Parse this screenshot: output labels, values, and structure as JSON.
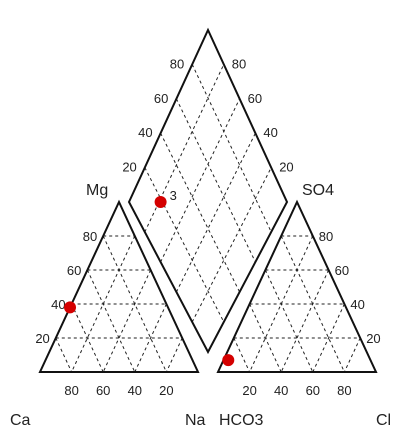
{
  "chart_data": {
    "type": "scatter",
    "variant": "piper-diagram",
    "grid_interval": 20,
    "point_color": "#d40000",
    "cation_triangle": {
      "corner_labels": [
        "Ca",
        "Mg",
        "Na"
      ],
      "left_axis_ticks": [
        "20",
        "40",
        "60",
        "80"
      ],
      "bottom_axis_ticks": [
        "80",
        "60",
        "40",
        "20"
      ],
      "points": [
        {
          "Ca": 62,
          "Mg": 38,
          "Na": 0
        }
      ]
    },
    "anion_triangle": {
      "corner_labels": [
        "HCO3",
        "SO4",
        "Cl"
      ],
      "right_axis_ticks": [
        "20",
        "40",
        "60",
        "80"
      ],
      "bottom_axis_ticks": [
        "20",
        "40",
        "60",
        "80"
      ],
      "points": [
        {
          "HCO3": 90,
          "SO4": 7,
          "Cl": 3
        }
      ]
    },
    "diamond": {
      "left_axis_ticks": [
        "20",
        "40",
        "60",
        "80"
      ],
      "right_axis_ticks": [
        "20",
        "40",
        "60",
        "80"
      ],
      "points": [
        {
          "Mg": 20,
          "SO4": 80,
          "label": "3"
        }
      ]
    }
  }
}
